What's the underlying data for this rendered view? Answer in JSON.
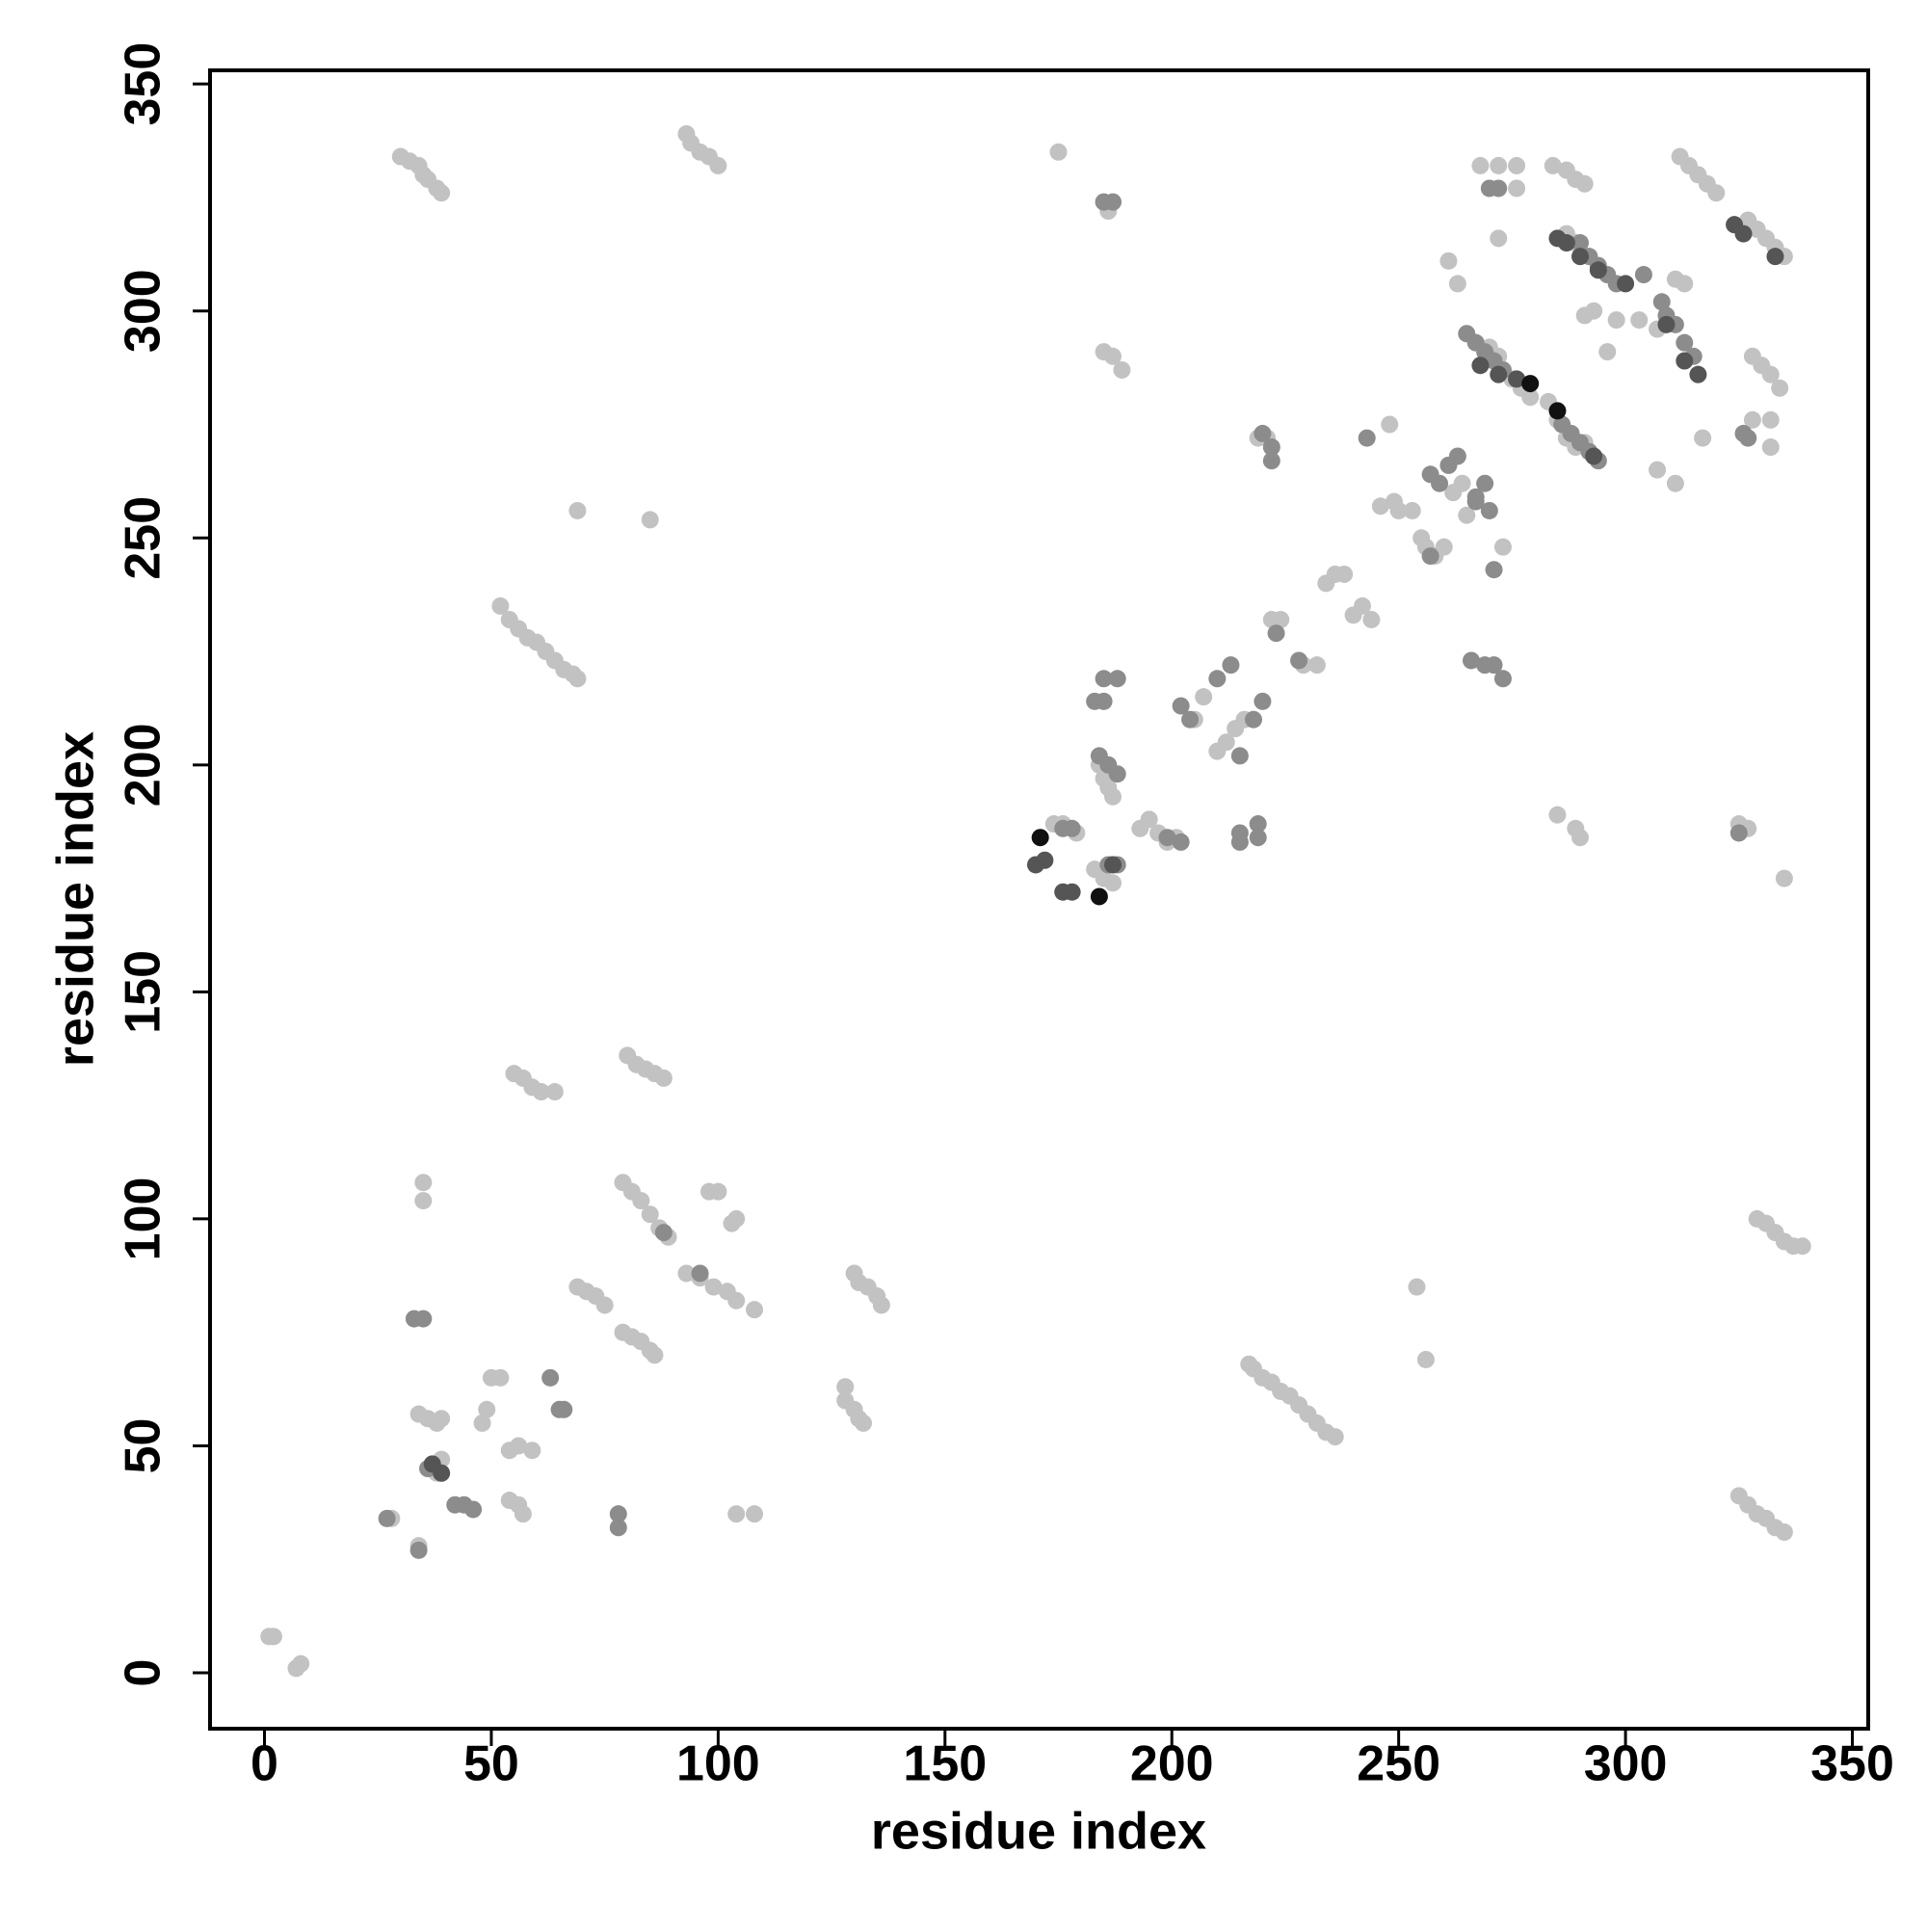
{
  "chart_data": {
    "type": "scatter",
    "xlabel": "residue index",
    "ylabel": "residue index",
    "xlim": [
      -12,
      353.5
    ],
    "ylim": [
      -12.3,
      353
    ],
    "xticks": [
      0,
      50,
      100,
      150,
      200,
      250,
      300,
      350
    ],
    "yticks": [
      0,
      50,
      100,
      150,
      200,
      250,
      300,
      350
    ],
    "series": [
      {
        "color": "#c2c2c2",
        "x": [
          1,
          2,
          7,
          8,
          30,
          32,
          34,
          35,
          36,
          38,
          39,
          93,
          94,
          96,
          98,
          100,
          175,
          52,
          54,
          56,
          58,
          60,
          62,
          64,
          66,
          68,
          69,
          69,
          85,
          55,
          57,
          59,
          61,
          64,
          80,
          82,
          84,
          86,
          88,
          35,
          35,
          79,
          81,
          83,
          85,
          87,
          89,
          98,
          100,
          104,
          103,
          69,
          71,
          73,
          75,
          93,
          96,
          99,
          102,
          104,
          108,
          79,
          81,
          83,
          85,
          86,
          128,
          128,
          130,
          131,
          132,
          130,
          131,
          133,
          135,
          136,
          34,
          36,
          38,
          39,
          50,
          52,
          48,
          49,
          54,
          56,
          59,
          54,
          56,
          57,
          34,
          28,
          104,
          108,
          38,
          39,
          217,
          218,
          220,
          222,
          224,
          226,
          228,
          230,
          232,
          234,
          236,
          254,
          256,
          174,
          176,
          179,
          183,
          185,
          187,
          184,
          185,
          186,
          187,
          193,
          195,
          197,
          199,
          201,
          205,
          207,
          210,
          212,
          214,
          216,
          219,
          221,
          222,
          224,
          229,
          232,
          234,
          236,
          238,
          240,
          242,
          244,
          248,
          246,
          249,
          250,
          253,
          255,
          256,
          258,
          260,
          262,
          264,
          265,
          273,
          261,
          263,
          268,
          272,
          272,
          276,
          276,
          284,
          287,
          289,
          291,
          283,
          285,
          287,
          289,
          291,
          275,
          277,
          279,
          272,
          270,
          287,
          289,
          291,
          293,
          298,
          296,
          307,
          303,
          307,
          311,
          311,
          313,
          312,
          314,
          316,
          318,
          320,
          327,
          329,
          331,
          333,
          335,
          328,
          330,
          332,
          334,
          328,
          332,
          332,
          317,
          325,
          327,
          335,
          285,
          289,
          290,
          329,
          331,
          333,
          335,
          337,
          339,
          325,
          327,
          329,
          331,
          333,
          335,
          185,
          187,
          189,
          186
        ],
        "y": [
          8,
          8,
          1,
          2,
          334,
          333,
          332,
          330,
          329,
          327,
          326,
          339,
          337,
          335,
          334,
          332,
          335,
          235,
          232,
          230,
          228,
          227,
          225,
          223,
          221,
          220,
          219,
          256,
          254,
          132,
          131,
          129,
          128,
          128,
          136,
          134,
          133,
          132,
          131,
          108,
          104,
          108,
          106,
          104,
          101,
          98,
          96,
          106,
          106,
          100,
          99,
          85,
          84,
          83,
          81,
          88,
          87,
          85,
          84,
          82,
          80,
          75,
          74,
          73,
          71,
          70,
          63,
          60,
          58,
          56,
          55,
          88,
          86,
          85,
          83,
          81,
          57,
          56,
          55,
          56,
          65,
          65,
          55,
          58,
          49,
          50,
          49,
          38,
          37,
          35,
          28,
          34,
          35,
          35,
          44,
          47,
          68,
          67,
          65,
          64,
          62,
          61,
          59,
          57,
          55,
          53,
          52,
          85,
          69,
          187,
          187,
          185,
          177,
          175,
          174,
          200,
          197,
          195,
          193,
          186,
          188,
          185,
          183,
          184,
          210,
          215,
          203,
          205,
          208,
          210,
          272,
          272,
          232,
          232,
          222,
          222,
          240,
          242,
          242,
          233,
          235,
          232,
          275,
          257,
          258,
          256,
          256,
          250,
          248,
          246,
          248,
          260,
          262,
          255,
          248,
          311,
          306,
          332,
          316,
          332,
          327,
          332,
          332,
          331,
          329,
          328,
          280,
          276,
          272,
          270,
          271,
          285,
          283,
          281,
          290,
          292,
          317,
          315,
          299,
          300,
          298,
          291,
          296,
          298,
          265,
          262,
          307,
          306,
          334,
          332,
          330,
          328,
          326,
          320,
          318,
          316,
          314,
          312,
          290,
          288,
          286,
          283,
          276,
          276,
          270,
          272,
          187,
          186,
          175,
          189,
          186,
          184,
          100,
          99,
          97,
          95,
          94,
          94,
          39,
          37,
          35,
          34,
          32,
          31,
          291,
          290,
          287,
          322
        ]
      },
      {
        "color": "#8c8c8c",
        "x": [
          27,
          34,
          78,
          78,
          33,
          35,
          63,
          65,
          66,
          36,
          42,
          44,
          46,
          88,
          96,
          185,
          187,
          185,
          188,
          183,
          185,
          184,
          186,
          188,
          186,
          188,
          176,
          178,
          199,
          202,
          202,
          204,
          210,
          213,
          215,
          218,
          220,
          219,
          219,
          215,
          215,
          222,
          222,
          220,
          223,
          228,
          243,
          257,
          259,
          261,
          263,
          267,
          269,
          267,
          270,
          257,
          271,
          266,
          269,
          271,
          273,
          265,
          267,
          269,
          271,
          273,
          290,
          292,
          294,
          296,
          298,
          304,
          286,
          288,
          290,
          292,
          294,
          308,
          309,
          311,
          313,
          315,
          325,
          326,
          327,
          270,
          272
        ],
        "y": [
          34,
          27,
          35,
          32,
          78,
          78,
          65,
          58,
          58,
          45,
          37,
          37,
          36,
          97,
          88,
          324,
          324,
          219,
          219,
          214,
          214,
          202,
          200,
          198,
          178,
          178,
          186,
          186,
          184,
          183,
          213,
          210,
          219,
          222,
          202,
          210,
          214,
          187,
          184,
          183,
          185,
          267,
          270,
          273,
          229,
          223,
          272,
          264,
          262,
          266,
          268,
          258,
          262,
          259,
          256,
          246,
          243,
          223,
          222,
          222,
          219,
          295,
          293,
          291,
          289,
          287,
          315,
          312,
          310,
          308,
          306,
          308,
          275,
          273,
          271,
          269,
          267,
          302,
          299,
          297,
          293,
          290,
          185,
          273,
          272,
          327,
          327
        ]
      },
      {
        "color": "#555555",
        "x": [
          37,
          39,
          170,
          172,
          176,
          178,
          187,
          268,
          272,
          276,
          293,
          285,
          287,
          290,
          294,
          300,
          309,
          313,
          316,
          333,
          324,
          326
        ],
        "y": [
          46,
          44,
          178,
          179,
          172,
          172,
          178,
          288,
          286,
          285,
          268,
          316,
          315,
          312,
          309,
          306,
          297,
          289,
          286,
          312,
          319,
          317
        ]
      },
      {
        "color": "#111111",
        "x": [
          171,
          184,
          279,
          285
        ],
        "y": [
          184,
          171,
          284,
          278
        ]
      }
    ]
  }
}
